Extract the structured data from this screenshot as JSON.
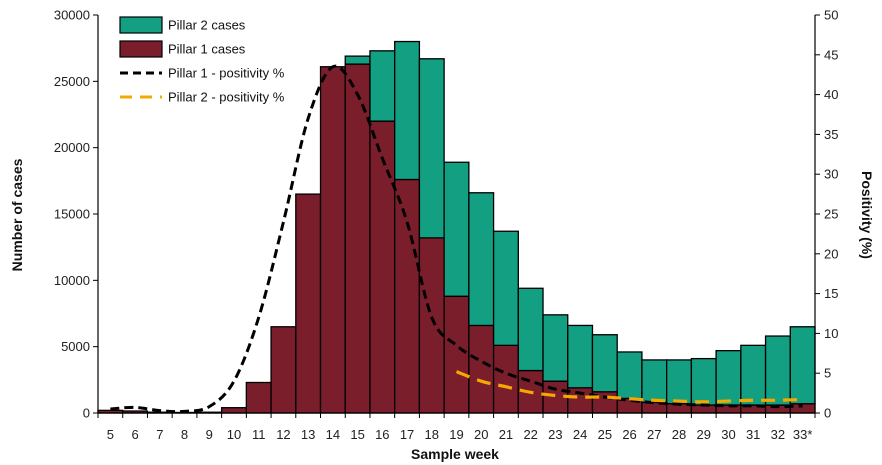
{
  "chart_data": {
    "type": "bar",
    "stacked": true,
    "categories": [
      "5",
      "6",
      "7",
      "8",
      "9",
      "10",
      "11",
      "12",
      "13",
      "14",
      "15",
      "16",
      "17",
      "18",
      "19",
      "20",
      "21",
      "22",
      "23",
      "24",
      "25",
      "26",
      "27",
      "28",
      "29",
      "30",
      "31",
      "32",
      "33*"
    ],
    "series": [
      {
        "name": "Pillar 1 cases",
        "kind": "bar",
        "axis": "left",
        "values": [
          200,
          150,
          60,
          40,
          60,
          400,
          2300,
          6500,
          16500,
          26100,
          26300,
          22000,
          17600,
          13200,
          8800,
          6600,
          5100,
          3200,
          2400,
          1900,
          1600,
          1100,
          800,
          700,
          600,
          600,
          600,
          600,
          700
        ]
      },
      {
        "name": "Pillar 2 cases",
        "kind": "bar",
        "axis": "left",
        "values": [
          0,
          0,
          0,
          0,
          0,
          0,
          0,
          0,
          0,
          0,
          600,
          5300,
          10400,
          13500,
          10100,
          10000,
          8600,
          6200,
          5000,
          4700,
          4300,
          3500,
          3200,
          3300,
          3500,
          4100,
          4500,
          5200,
          5800
        ]
      },
      {
        "name": "Pillar 1 - positivity %",
        "kind": "line",
        "axis": "right",
        "style": "dashed",
        "x": [
          "5",
          "6",
          "7",
          "8",
          "9",
          "10",
          "11",
          "12",
          "13",
          "14",
          "15",
          "16",
          "17",
          "18",
          "19",
          "20",
          "21",
          "22",
          "23",
          "24",
          "25",
          "26",
          "27",
          "28",
          "29",
          "30",
          "31",
          "32",
          "33*"
        ],
        "values": [
          0.5,
          0.7,
          0.3,
          0.2,
          0.8,
          4.0,
          12.0,
          24.0,
          37.0,
          43.5,
          40.0,
          32.0,
          24.0,
          12.0,
          8.5,
          6.5,
          5.0,
          4.0,
          3.0,
          2.5,
          2.0,
          1.6,
          1.3,
          1.1,
          1.0,
          0.9,
          0.9,
          0.8,
          0.9
        ]
      },
      {
        "name": "Pillar 2 - positivity %",
        "kind": "line",
        "axis": "right",
        "style": "dashed",
        "x": [
          "19",
          "20",
          "21",
          "22",
          "23",
          "24",
          "25",
          "26",
          "27",
          "28",
          "29",
          "30",
          "31",
          "32",
          "33*"
        ],
        "values": [
          5.2,
          4.0,
          3.3,
          2.6,
          2.2,
          2.0,
          2.0,
          1.8,
          1.6,
          1.5,
          1.4,
          1.5,
          1.6,
          1.6,
          1.7
        ]
      }
    ],
    "xlabel": "Sample week",
    "ylabel": "Number of cases",
    "y2label": "Positivity (%)",
    "ylim": [
      0,
      30000
    ],
    "yticks": [
      0,
      5000,
      10000,
      15000,
      20000,
      25000,
      30000
    ],
    "y2lim": [
      0,
      50
    ],
    "y2ticks": [
      0,
      5,
      10,
      15,
      20,
      25,
      30,
      35,
      40,
      45,
      50
    ],
    "legend_position": "top-left",
    "grid": false,
    "colors": {
      "Pillar 1 cases": "#7b1e2b",
      "Pillar 2 cases": "#129f82",
      "Pillar 1 - positivity %": "#000000",
      "Pillar 2 - positivity %": "#f5a800"
    }
  }
}
